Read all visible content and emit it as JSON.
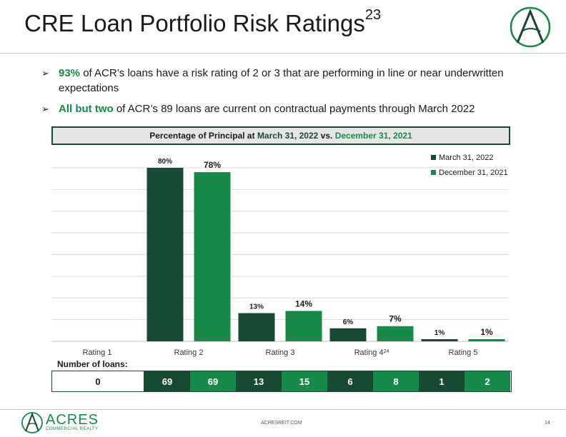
{
  "title": {
    "text": "CRE Loan Portfolio Risk Ratings",
    "sup": "23"
  },
  "bullets": [
    {
      "strong": "93%",
      "text": " of ACR’s loans have a risk rating of 2 or 3 that are performing in line or near underwritten expectations"
    },
    {
      "strong": "All but two",
      "text": " of ACR’s 89 loans are current on contractual payments through March 2022"
    }
  ],
  "chart_header": {
    "prefix": "Percentage of Principal at ",
    "date1": "March 31, 2022",
    "mid": " vs. ",
    "date2": "December 31, 2021"
  },
  "colors": {
    "dark_green": "#164a33",
    "light_green": "#178a49"
  },
  "chart_data": {
    "type": "bar",
    "categories": [
      "Rating 1",
      "Rating 2",
      "Rating 3",
      "Rating 4",
      "Rating 5"
    ],
    "category_sups": [
      "",
      "",
      "",
      "24",
      ""
    ],
    "series": [
      {
        "name": "March 31, 2022",
        "color": "#164a33",
        "values": [
          0,
          80,
          13,
          6,
          1
        ],
        "labels": [
          "",
          "80%",
          "13%",
          "6%",
          "1%"
        ]
      },
      {
        "name": "December 31, 2021",
        "color": "#178a49",
        "values": [
          0,
          78,
          14,
          7,
          1
        ],
        "labels": [
          "",
          "78%",
          "14%",
          "7%",
          "1%"
        ]
      }
    ],
    "ylim": [
      0,
      80
    ],
    "grid": true,
    "legend": "top-right"
  },
  "loans": {
    "label": "Number of loans:",
    "cells": [
      {
        "value": "0",
        "color": "#ffffff"
      },
      {
        "value": "69",
        "color": "#164a33"
      },
      {
        "value": "69",
        "color": "#178a49"
      },
      {
        "value": "13",
        "color": "#164a33"
      },
      {
        "value": "15",
        "color": "#178a49"
      },
      {
        "value": "6",
        "color": "#164a33"
      },
      {
        "value": "8",
        "color": "#178a49"
      },
      {
        "value": "1",
        "color": "#164a33"
      },
      {
        "value": "2",
        "color": "#178a49"
      }
    ]
  },
  "footer": {
    "brand": "ACRES",
    "sub": "COMMERCIAL REALTY",
    "url": "ACRESREIT.COM",
    "page": "14"
  }
}
